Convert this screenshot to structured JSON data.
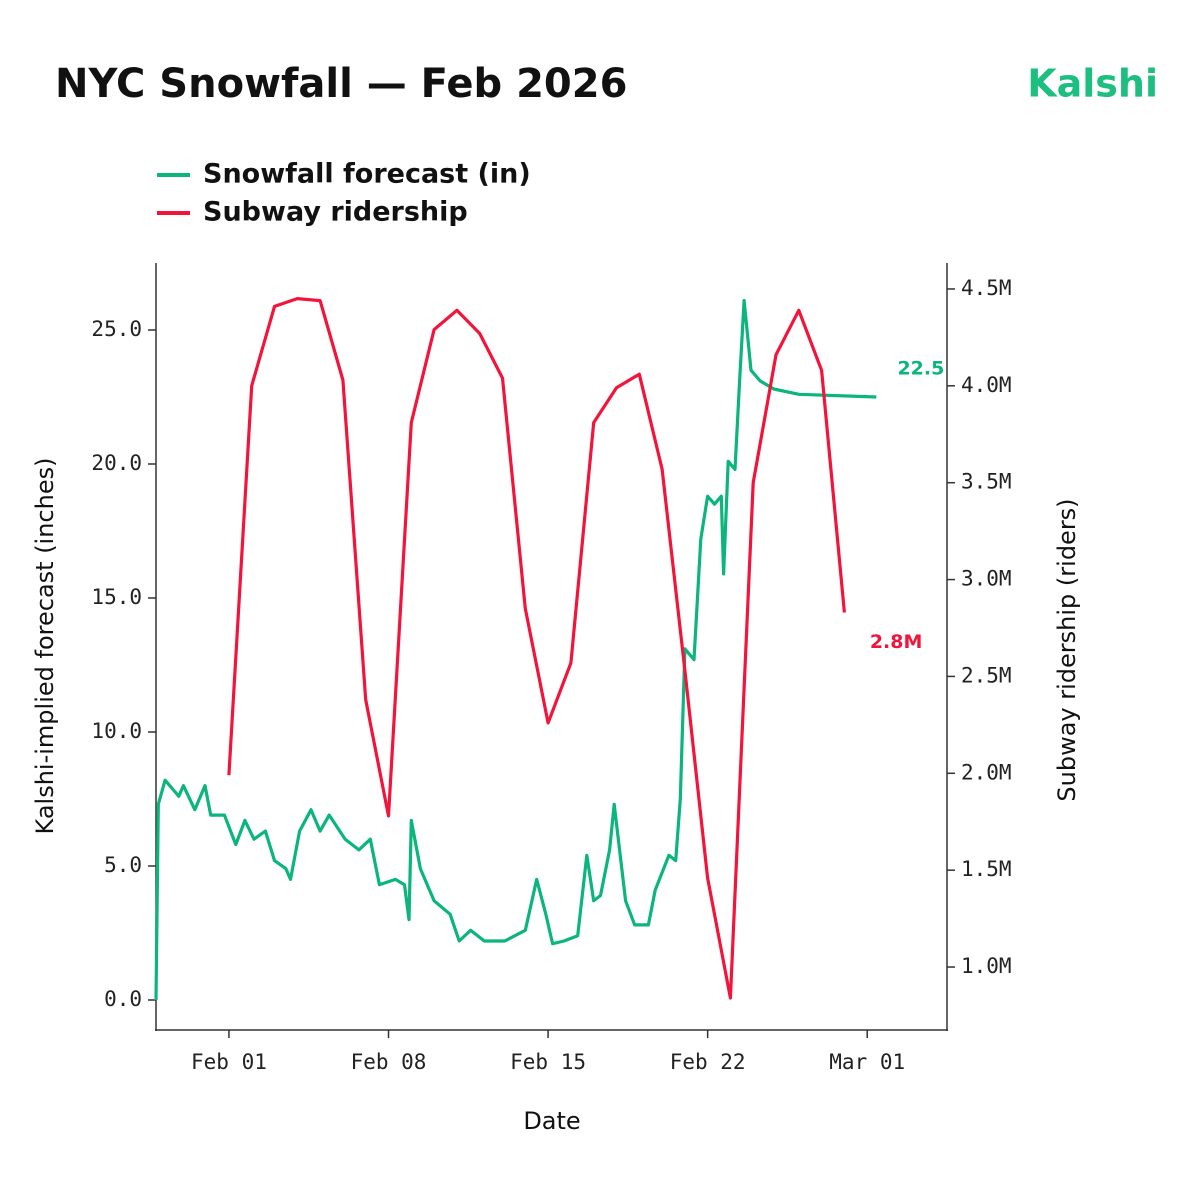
{
  "logo": "Kalshi",
  "chart_data": {
    "type": "line",
    "title": "NYC Snowfall — Feb 2026",
    "x_label": "Date",
    "y_label": "Kalshi-implied forecast (inches)",
    "y2_label": "Subway ridership (riders)",
    "xlim": [
      -2.2,
      32.5
    ],
    "xticks": [
      {
        "value": 1,
        "label": "Feb 01"
      },
      {
        "value": 8,
        "label": "Feb 08"
      },
      {
        "value": 15,
        "label": "Feb 15"
      },
      {
        "value": 22,
        "label": "Feb 22"
      },
      {
        "value": 29,
        "label": "Mar 01"
      }
    ],
    "ylim": [
      -1.12,
      27.5
    ],
    "yticks": [
      {
        "value": 0,
        "label": "0.0"
      },
      {
        "value": 5,
        "label": "5.0"
      },
      {
        "value": 10,
        "label": "10.0"
      },
      {
        "value": 15,
        "label": "15.0"
      },
      {
        "value": 20,
        "label": "20.0"
      },
      {
        "value": 25,
        "label": "25.0"
      }
    ],
    "y2lim": [
      675000,
      4634000
    ],
    "y2ticks": [
      {
        "value": 1000000,
        "label": "1.0M"
      },
      {
        "value": 1500000,
        "label": "1.5M"
      },
      {
        "value": 2000000,
        "label": "2.0M"
      },
      {
        "value": 2500000,
        "label": "2.5M"
      },
      {
        "value": 3000000,
        "label": "3.0M"
      },
      {
        "value": 3500000,
        "label": "3.5M"
      },
      {
        "value": 4000000,
        "label": "4.0M"
      },
      {
        "value": 4500000,
        "label": "4.5M"
      }
    ],
    "legend": "top-left",
    "series": [
      {
        "name": "Snowfall forecast (in)",
        "color": "#0bb57c",
        "x": [
          -2.2,
          -2.1,
          -1.8,
          -1.4,
          -1.2,
          -1.0,
          -0.5,
          -0.05,
          0.2,
          0.8,
          1.3,
          1.7,
          2.1,
          2.6,
          3.0,
          3.5,
          3.7,
          4.1,
          4.6,
          5.0,
          5.4,
          6.1,
          6.7,
          7.2,
          7.6,
          8.3,
          8.7,
          8.9,
          9.0,
          9.4,
          10.0,
          10.7,
          11.1,
          11.6,
          12.2,
          13.1,
          14.0,
          14.5,
          14.9,
          15.2,
          15.7,
          16.3,
          16.7,
          17.0,
          17.3,
          17.7,
          17.9,
          18.4,
          18.8,
          19.4,
          19.7,
          20.3,
          20.6,
          20.8,
          21.0,
          21.4,
          21.7,
          22.0,
          22.3,
          22.6,
          22.7,
          22.9,
          23.2,
          23.4,
          23.6,
          23.9,
          24.3,
          24.9,
          26.0,
          29.4
        ],
        "values": [
          0,
          7.3,
          8.2,
          7.8,
          7.6,
          8.0,
          7.1,
          8.0,
          6.9,
          6.9,
          5.8,
          6.7,
          6.0,
          6.3,
          5.2,
          4.9,
          4.5,
          6.3,
          7.1,
          6.3,
          6.9,
          6.0,
          5.6,
          6.0,
          4.3,
          4.5,
          4.3,
          3.0,
          6.7,
          4.9,
          3.7,
          3.2,
          2.2,
          2.6,
          2.2,
          2.2,
          2.6,
          4.5,
          3.2,
          2.1,
          2.2,
          2.4,
          5.4,
          3.7,
          3.9,
          5.6,
          7.3,
          3.7,
          2.8,
          2.8,
          4.1,
          5.4,
          5.2,
          7.5,
          13.1,
          12.7,
          17.2,
          18.8,
          18.5,
          18.8,
          15.9,
          20.1,
          19.8,
          23.1,
          26.1,
          23.5,
          23.1,
          22.8,
          22.6,
          22.5
        ]
      },
      {
        "name": "Subway ridership",
        "color": "#f2143a",
        "axis": "y2",
        "x": [
          1,
          2,
          3,
          4,
          5,
          6,
          7,
          8,
          9,
          10,
          11,
          12,
          13,
          14,
          15,
          16,
          17,
          18,
          19,
          20,
          21,
          22,
          23,
          24,
          25,
          26,
          27,
          28
        ],
        "values": [
          1990000,
          4000000,
          4410000,
          4450000,
          4440000,
          4030000,
          2380000,
          1780000,
          3810000,
          4290000,
          4390000,
          4270000,
          4040000,
          2850000,
          2260000,
          2570000,
          3810000,
          3990000,
          4060000,
          3570000,
          2530000,
          1460000,
          840000,
          3500000,
          4160000,
          4390000,
          4080000,
          2830000
        ],
        "value_labels": [
          null,
          null,
          null,
          null,
          null,
          null,
          null,
          null,
          null,
          null,
          null,
          null,
          null,
          null,
          null,
          null,
          null,
          null,
          null,
          null,
          null,
          null,
          null,
          null,
          null,
          null,
          null,
          "2.8M"
        ]
      }
    ]
  }
}
